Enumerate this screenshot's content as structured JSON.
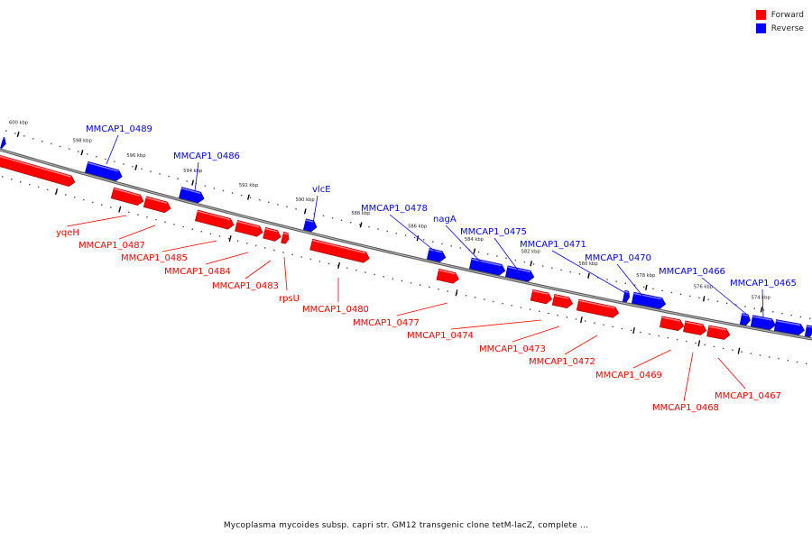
{
  "legend": [
    {
      "label": "Forward",
      "color": "#ff0000"
    },
    {
      "label": "Reverse",
      "color": "#0000ff"
    }
  ],
  "colors": {
    "forward": "#ff0000",
    "reverse": "#0000ff",
    "backbone": "#8a8a8a",
    "dots": "#444444"
  },
  "caption": "Mycoplasma mycoides subsp. capri str. GM12 transgenic clone tetM-lacZ, complete ...",
  "ticks": [
    "600 kbp",
    "598 kbp",
    "596 kbp",
    "594 kbp",
    "592 kbp",
    "590 kbp",
    "588 kbp",
    "586 kbp",
    "584 kbp",
    "582 kbp",
    "580 kbp",
    "578 kbp",
    "576 kbp",
    "574 kbp"
  ],
  "reverse_labels": [
    "MMCAP1_0489",
    "MMCAP1_0486",
    "vlcE",
    "MMCAP1_0478",
    "nagA",
    "MMCAP1_0475",
    "MMCAP1_0471",
    "MMCAP1_0470",
    "MMCAP1_0466",
    "MMCAP1_0465"
  ],
  "forward_labels": [
    "yqeH",
    "MMCAP1_0487",
    "MMCAP1_0485",
    "MMCAP1_0484",
    "MMCAP1_0483",
    "rpsU",
    "MMCAP1_0480",
    "MMCAP1_0477",
    "MMCAP1_0474",
    "MMCAP1_0473",
    "MMCAP1_0472",
    "MMCAP1_0469",
    "MMCAP1_0468",
    "MMCAP1_0467"
  ]
}
